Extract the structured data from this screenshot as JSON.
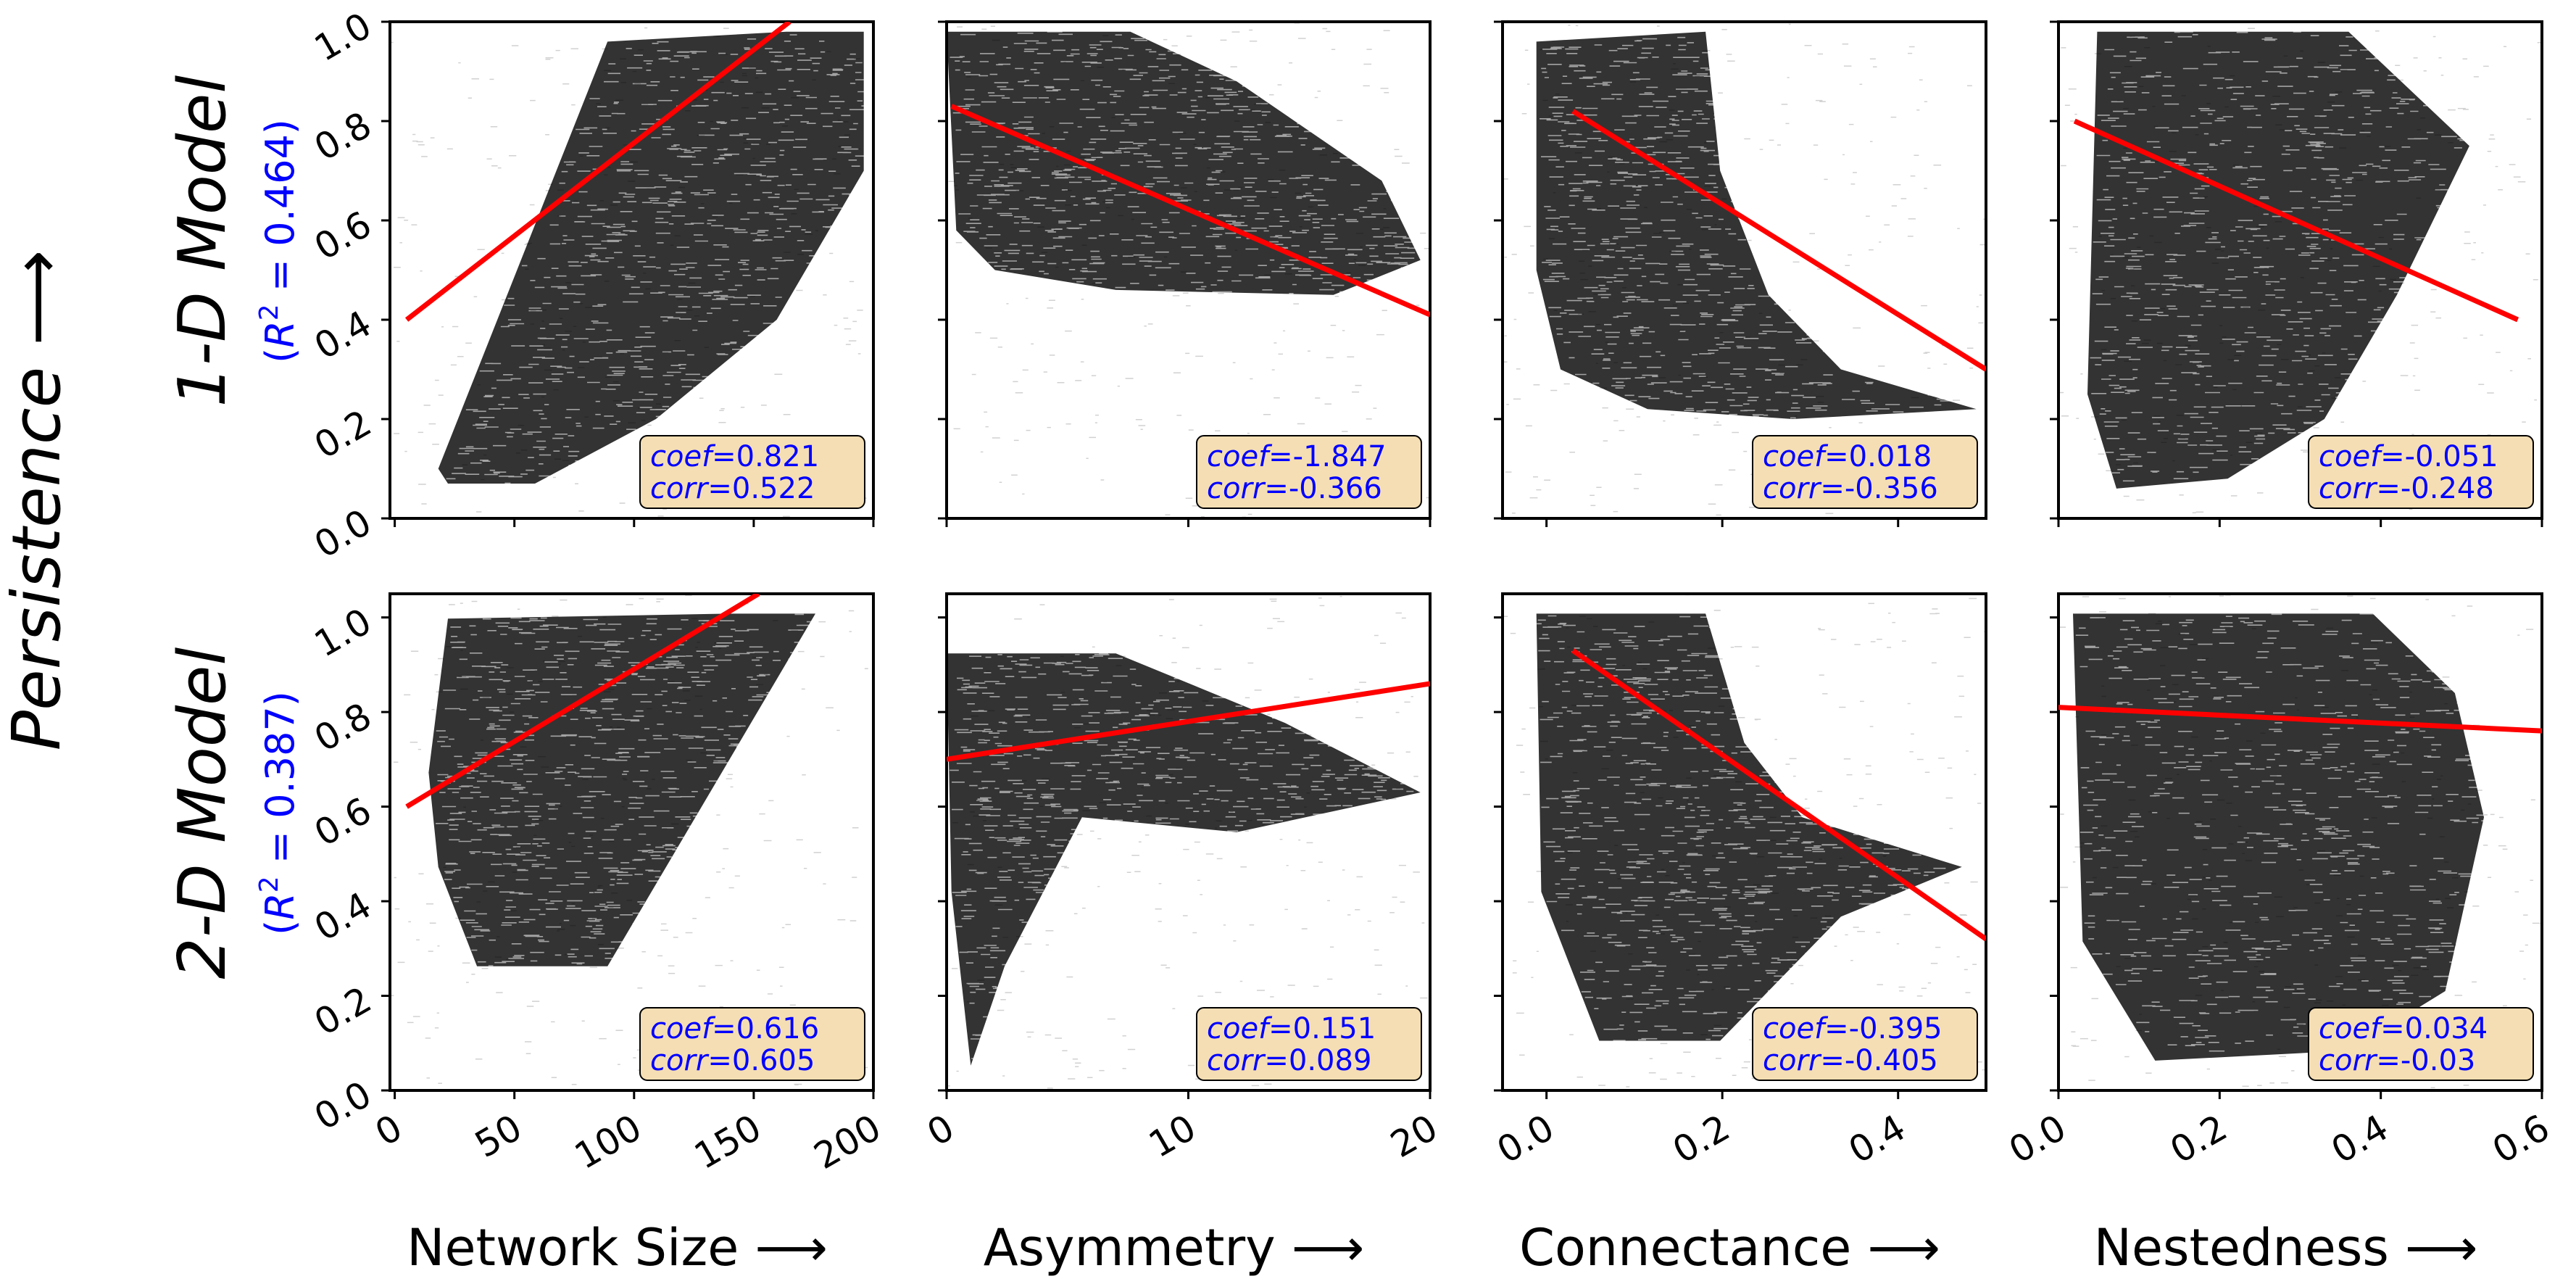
{
  "figure": {
    "ylabel": "Persistence",
    "arrow": "⟶",
    "rows": [
      {
        "model": "1-D Model",
        "r2_prefix": "(",
        "r2_symbol": "R",
        "r2_exp": "2",
        "r2_value": " = 0.464)"
      },
      {
        "model": "2-D Model",
        "r2_prefix": "(",
        "r2_symbol": "R",
        "r2_exp": "2",
        "r2_value": " = 0.387)"
      }
    ],
    "columns": [
      {
        "xlabel": "Network Size"
      },
      {
        "xlabel": "Asymmetry"
      },
      {
        "xlabel": "Connectance"
      },
      {
        "xlabel": "Nestedness"
      }
    ],
    "y_ticks": [
      "0.0",
      "0.2",
      "0.4",
      "0.6",
      "0.8",
      "1.0"
    ],
    "coef_label": "coef",
    "corr_label": "corr",
    "equals": " = ",
    "colors": {
      "fit": "#ff0000",
      "annotation_text": "#0000ff",
      "annotation_box": "#f5deb3",
      "scatter": "#000000"
    }
  },
  "chart_data": [
    {
      "type": "scatter",
      "row": "1-D Model",
      "xlabel": "Network Size",
      "xlim": [
        -2,
        200
      ],
      "ylim": [
        0,
        1
      ],
      "x_ticks": [
        "0",
        "50",
        "100",
        "150",
        "200"
      ],
      "x_tick_values": [
        0,
        50,
        100,
        150,
        200
      ],
      "fit_line": {
        "x": [
          5,
          165
        ],
        "y": [
          0.4,
          1.0
        ]
      },
      "coef": "0.821",
      "corr": "0.522"
    },
    {
      "type": "scatter",
      "row": "1-D Model",
      "xlabel": "Asymmetry",
      "xlim": [
        0,
        20
      ],
      "ylim": [
        0,
        1
      ],
      "x_ticks": [
        "0",
        "10",
        "20"
      ],
      "x_tick_values": [
        0,
        10,
        20
      ],
      "fit_line": {
        "x": [
          0.2,
          20
        ],
        "y": [
          0.83,
          0.41
        ]
      },
      "coef": "-1.847",
      "corr": "-0.366"
    },
    {
      "type": "scatter",
      "row": "1-D Model",
      "xlabel": "Connectance",
      "xlim": [
        -0.05,
        0.5
      ],
      "ylim": [
        0,
        1
      ],
      "x_ticks": [
        "0.0",
        "0.2",
        "0.4"
      ],
      "x_tick_values": [
        0,
        0.2,
        0.4
      ],
      "fit_line": {
        "x": [
          0.03,
          0.5
        ],
        "y": [
          0.82,
          0.3
        ]
      },
      "coef": "0.018",
      "corr": "-0.356"
    },
    {
      "type": "scatter",
      "row": "1-D Model",
      "xlabel": "Nestedness",
      "xlim": [
        0,
        0.6
      ],
      "ylim": [
        0,
        1
      ],
      "x_ticks": [
        "0.0",
        "0.2",
        "0.4",
        "0.6"
      ],
      "x_tick_values": [
        0,
        0.2,
        0.4,
        0.6
      ],
      "fit_line": {
        "x": [
          0.02,
          0.57
        ],
        "y": [
          0.8,
          0.4
        ]
      },
      "coef": "-0.051",
      "corr": "-0.248"
    },
    {
      "type": "scatter",
      "row": "2-D Model",
      "xlabel": "Network Size",
      "xlim": [
        -2,
        200
      ],
      "ylim": [
        0,
        1.05
      ],
      "x_ticks": [
        "0",
        "50",
        "100",
        "150",
        "200"
      ],
      "x_tick_values": [
        0,
        50,
        100,
        150,
        200
      ],
      "fit_line": {
        "x": [
          5,
          152
        ],
        "y": [
          0.6,
          1.05
        ]
      },
      "coef": "0.616",
      "corr": "0.605"
    },
    {
      "type": "scatter",
      "row": "2-D Model",
      "xlabel": "Asymmetry",
      "xlim": [
        0,
        20
      ],
      "ylim": [
        0,
        1.05
      ],
      "x_ticks": [
        "0",
        "10",
        "20"
      ],
      "x_tick_values": [
        0,
        10,
        20
      ],
      "fit_line": {
        "x": [
          0,
          20
        ],
        "y": [
          0.7,
          0.86
        ]
      },
      "coef": "0.151",
      "corr": "0.089"
    },
    {
      "type": "scatter",
      "row": "2-D Model",
      "xlabel": "Connectance",
      "xlim": [
        -0.05,
        0.5
      ],
      "ylim": [
        0,
        1.05
      ],
      "x_ticks": [
        "0.0",
        "0.2",
        "0.4"
      ],
      "x_tick_values": [
        0,
        0.2,
        0.4
      ],
      "fit_line": {
        "x": [
          0.03,
          0.5
        ],
        "y": [
          0.93,
          0.32
        ]
      },
      "coef": "-0.395",
      "corr": "-0.405"
    },
    {
      "type": "scatter",
      "row": "2-D Model",
      "xlabel": "Nestedness",
      "xlim": [
        0,
        0.6
      ],
      "ylim": [
        0,
        1.05
      ],
      "x_ticks": [
        "0.0",
        "0.2",
        "0.4",
        "0.6"
      ],
      "x_tick_values": [
        0,
        0.2,
        0.4,
        0.6
      ],
      "fit_line": {
        "x": [
          0,
          0.6
        ],
        "y": [
          0.81,
          0.76
        ]
      },
      "coef": "0.034",
      "corr": "-0.03"
    }
  ]
}
